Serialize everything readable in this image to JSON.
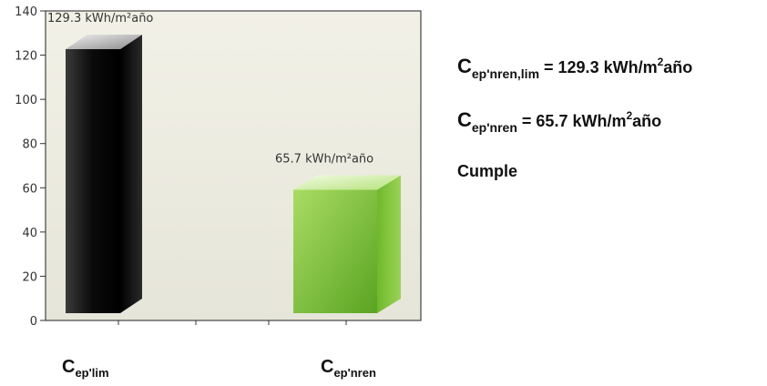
{
  "chart_data": {
    "type": "bar",
    "ylim": [
      0,
      140
    ],
    "yticks": [
      0,
      20,
      40,
      60,
      80,
      100,
      120,
      140
    ],
    "grid": false,
    "categories": [
      {
        "base": "C",
        "sub": "ep'lim"
      },
      {
        "base": "C",
        "sub": "ep'nren"
      }
    ],
    "values": [
      129.3,
      65.7
    ],
    "value_labels": [
      "129.3  kWh/m²año",
      "65.7  kWh/m²año"
    ],
    "colors": [
      "#111111",
      "#7dc63c"
    ]
  },
  "summary": {
    "limit": {
      "symbol": "C",
      "sub": "ep'nren,lim",
      "text": " = 129.3 kWh/m",
      "sup": "2",
      "unit": "año"
    },
    "actual": {
      "symbol": "C",
      "sub": "ep'nren",
      "text": " = 65.7 kWh/m",
      "sup": "2",
      "unit": "año"
    },
    "status": "Cumple"
  }
}
